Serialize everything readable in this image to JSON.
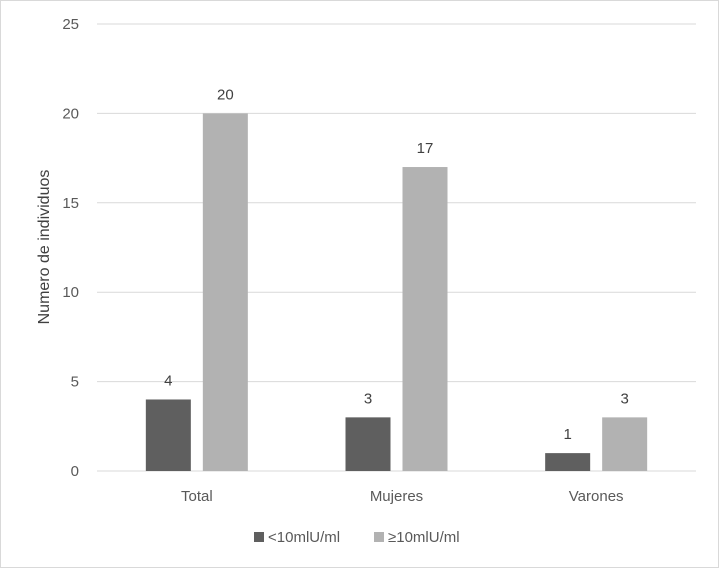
{
  "chart_data": {
    "type": "bar",
    "title": "",
    "xlabel": "",
    "ylabel": "Numero de individuos",
    "categories": [
      "Total",
      "Mujeres",
      "Varones"
    ],
    "series": [
      {
        "name": "<10mlU/ml",
        "values": [
          4,
          3,
          1
        ],
        "color": "#5f5f5f"
      },
      {
        "name": "≥10mlU/ml",
        "values": [
          20,
          17,
          3
        ],
        "color": "#b2b2b2"
      }
    ],
    "ylim": [
      0,
      25
    ],
    "yticks": [
      0,
      5,
      10,
      15,
      20,
      25
    ],
    "grid": true,
    "legend_position": "bottom",
    "data_labels": true
  }
}
